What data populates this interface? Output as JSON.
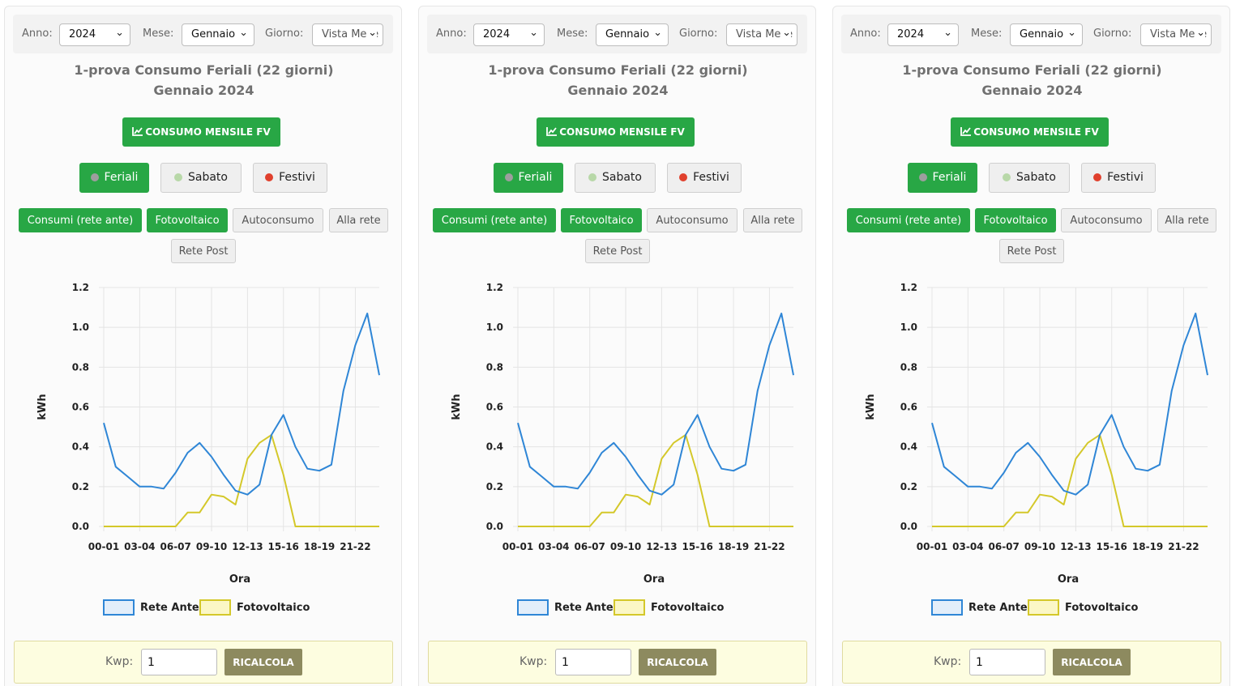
{
  "filters": {
    "year_label": "Anno:",
    "year_value": "2024",
    "month_label": "Mese:",
    "month_value": "Gennaio",
    "day_label": "Giorno:",
    "day_value": "Vista Mese"
  },
  "title_line1": "1-prova Consumo Feriali (22 giorni)",
  "title_line2": "Gennaio 2024",
  "monthly_button_label": "CONSUMO MENSILE FV",
  "day_types": [
    {
      "label": "Feriali",
      "dot_color": "#9e9e9e",
      "active": true
    },
    {
      "label": "Sabato",
      "dot_color": "#b8d8a8",
      "active": false
    },
    {
      "label": "Festivi",
      "dot_color": "#e0402d",
      "active": false
    }
  ],
  "series_toggles": [
    {
      "label": "Consumi (rete ante)",
      "active": true
    },
    {
      "label": "Fotovoltaico",
      "active": true
    },
    {
      "label": "Autoconsumo",
      "active": false
    },
    {
      "label": "Alla rete",
      "active": false
    },
    {
      "label": "Rete Post",
      "active": false
    }
  ],
  "kwp": {
    "label": "Kwp:",
    "value": "1",
    "button_label": "RICALCOLA"
  },
  "chart_data": {
    "type": "line",
    "xlabel": "Ora",
    "ylabel": "kWh",
    "ylim": [
      0,
      1.2
    ],
    "yticks": [
      "0.0",
      "0.2",
      "0.4",
      "0.6",
      "0.8",
      "1.0",
      "1.2"
    ],
    "categories": [
      "00-01",
      "01-02",
      "02-03",
      "03-04",
      "04-05",
      "05-06",
      "06-07",
      "07-08",
      "08-09",
      "09-10",
      "10-11",
      "11-12",
      "12-13",
      "13-14",
      "14-15",
      "15-16",
      "16-17",
      "17-18",
      "18-19",
      "19-20",
      "20-21",
      "21-22",
      "22-23",
      "23-24"
    ],
    "x_tick_labels": [
      "00-01",
      "03-04",
      "06-07",
      "09-10",
      "12-13",
      "15-16",
      "18-19",
      "21-22"
    ],
    "grid": true,
    "legend_position": "bottom",
    "series": [
      {
        "name": "Rete Ante",
        "color": "#2f86d6",
        "fill": "#e3eefa",
        "values": [
          0.52,
          0.3,
          0.25,
          0.2,
          0.2,
          0.19,
          0.27,
          0.37,
          0.42,
          0.35,
          0.26,
          0.18,
          0.16,
          0.21,
          0.46,
          0.56,
          0.4,
          0.29,
          0.28,
          0.31,
          0.68,
          0.91,
          1.07,
          0.76
        ]
      },
      {
        "name": "Fotovoltaico",
        "color": "#d4c82a",
        "fill": "#fbf7c6",
        "values": [
          0,
          0,
          0,
          0,
          0,
          0,
          0,
          0.07,
          0.07,
          0.16,
          0.15,
          0.11,
          0.34,
          0.42,
          0.46,
          0.26,
          0,
          0,
          0,
          0,
          0,
          0,
          0,
          0
        ]
      }
    ]
  }
}
